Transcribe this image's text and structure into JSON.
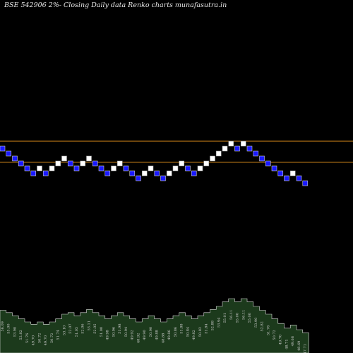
{
  "title": "BSE 542906  2%-  Closing Daily data  Renko  charts munafasutra.in",
  "colors": {
    "background": "#000000",
    "up_brick": "#ffffff",
    "down_brick": "#1a1aff",
    "brick_outline": "#cccccc",
    "level_line": "#d98a1a",
    "area_fill": "#1c3a1c",
    "area_stroke": "#e0e0e0",
    "label": "#cfcfcf"
  },
  "chart_data": {
    "type": "renko",
    "direction": [
      "down",
      "down",
      "down",
      "down",
      "down",
      "down",
      "up",
      "down",
      "up",
      "up",
      "up",
      "down",
      "down",
      "up",
      "up",
      "down",
      "down",
      "down",
      "up",
      "up",
      "down",
      "down",
      "down",
      "up",
      "up",
      "down",
      "down",
      "up",
      "up",
      "up",
      "down",
      "down",
      "up",
      "up",
      "up",
      "up",
      "up",
      "up",
      "down",
      "up",
      "down",
      "down",
      "down",
      "down",
      "down",
      "down",
      "down",
      "up",
      "down",
      "down"
    ],
    "level_offsets": [
      0,
      -1,
      -2,
      -3,
      -4,
      -5,
      -4,
      -5,
      -4,
      -3,
      -2,
      -3,
      -4,
      -3,
      -2,
      -3,
      -4,
      -5,
      -4,
      -3,
      -4,
      -5,
      -6,
      -5,
      -4,
      -5,
      -6,
      -5,
      -4,
      -3,
      -4,
      -5,
      -4,
      -3,
      -2,
      -1,
      0,
      1,
      0,
      1,
      0,
      -1,
      -2,
      -3,
      -4,
      -5,
      -6,
      -5,
      -6,
      -7
    ],
    "support_levels_offset": [
      0,
      -2.3
    ],
    "price_labels": [
      "56.09",
      "55.00",
      "53.90",
      "52.82",
      "51.76",
      "49.70",
      "50.72",
      "49.70",
      "50.72",
      "51.74",
      "53.10",
      "52.07",
      "51.05",
      "52.06",
      "53.11",
      "52.05",
      "51.00",
      "49.98",
      "50.96",
      "51.98",
      "50.94",
      "49.92",
      "48.92",
      "49.90",
      "50.90",
      "49.88",
      "48.88",
      "49.86",
      "50.86",
      "51.88",
      "50.84",
      "49.82",
      "50.82",
      "51.84",
      "52.88",
      "53.94",
      "55.01",
      "56.11",
      "55.00",
      "56.11",
      "55.00",
      "53.90",
      "52.82",
      "51.76",
      "50.72",
      "49.70",
      "48.71",
      "49.68",
      "48.69",
      "47.71"
    ],
    "area_profile": [
      0.55,
      0.52,
      0.48,
      0.44,
      0.4,
      0.37,
      0.4,
      0.37,
      0.4,
      0.44,
      0.5,
      0.52,
      0.48,
      0.52,
      0.56,
      0.52,
      0.48,
      0.44,
      0.48,
      0.52,
      0.48,
      0.44,
      0.4,
      0.44,
      0.48,
      0.44,
      0.4,
      0.44,
      0.48,
      0.52,
      0.48,
      0.44,
      0.48,
      0.52,
      0.56,
      0.6,
      0.66,
      0.7,
      0.66,
      0.7,
      0.66,
      0.6,
      0.55,
      0.5,
      0.44,
      0.38,
      0.32,
      0.36,
      0.3,
      0.26
    ]
  }
}
